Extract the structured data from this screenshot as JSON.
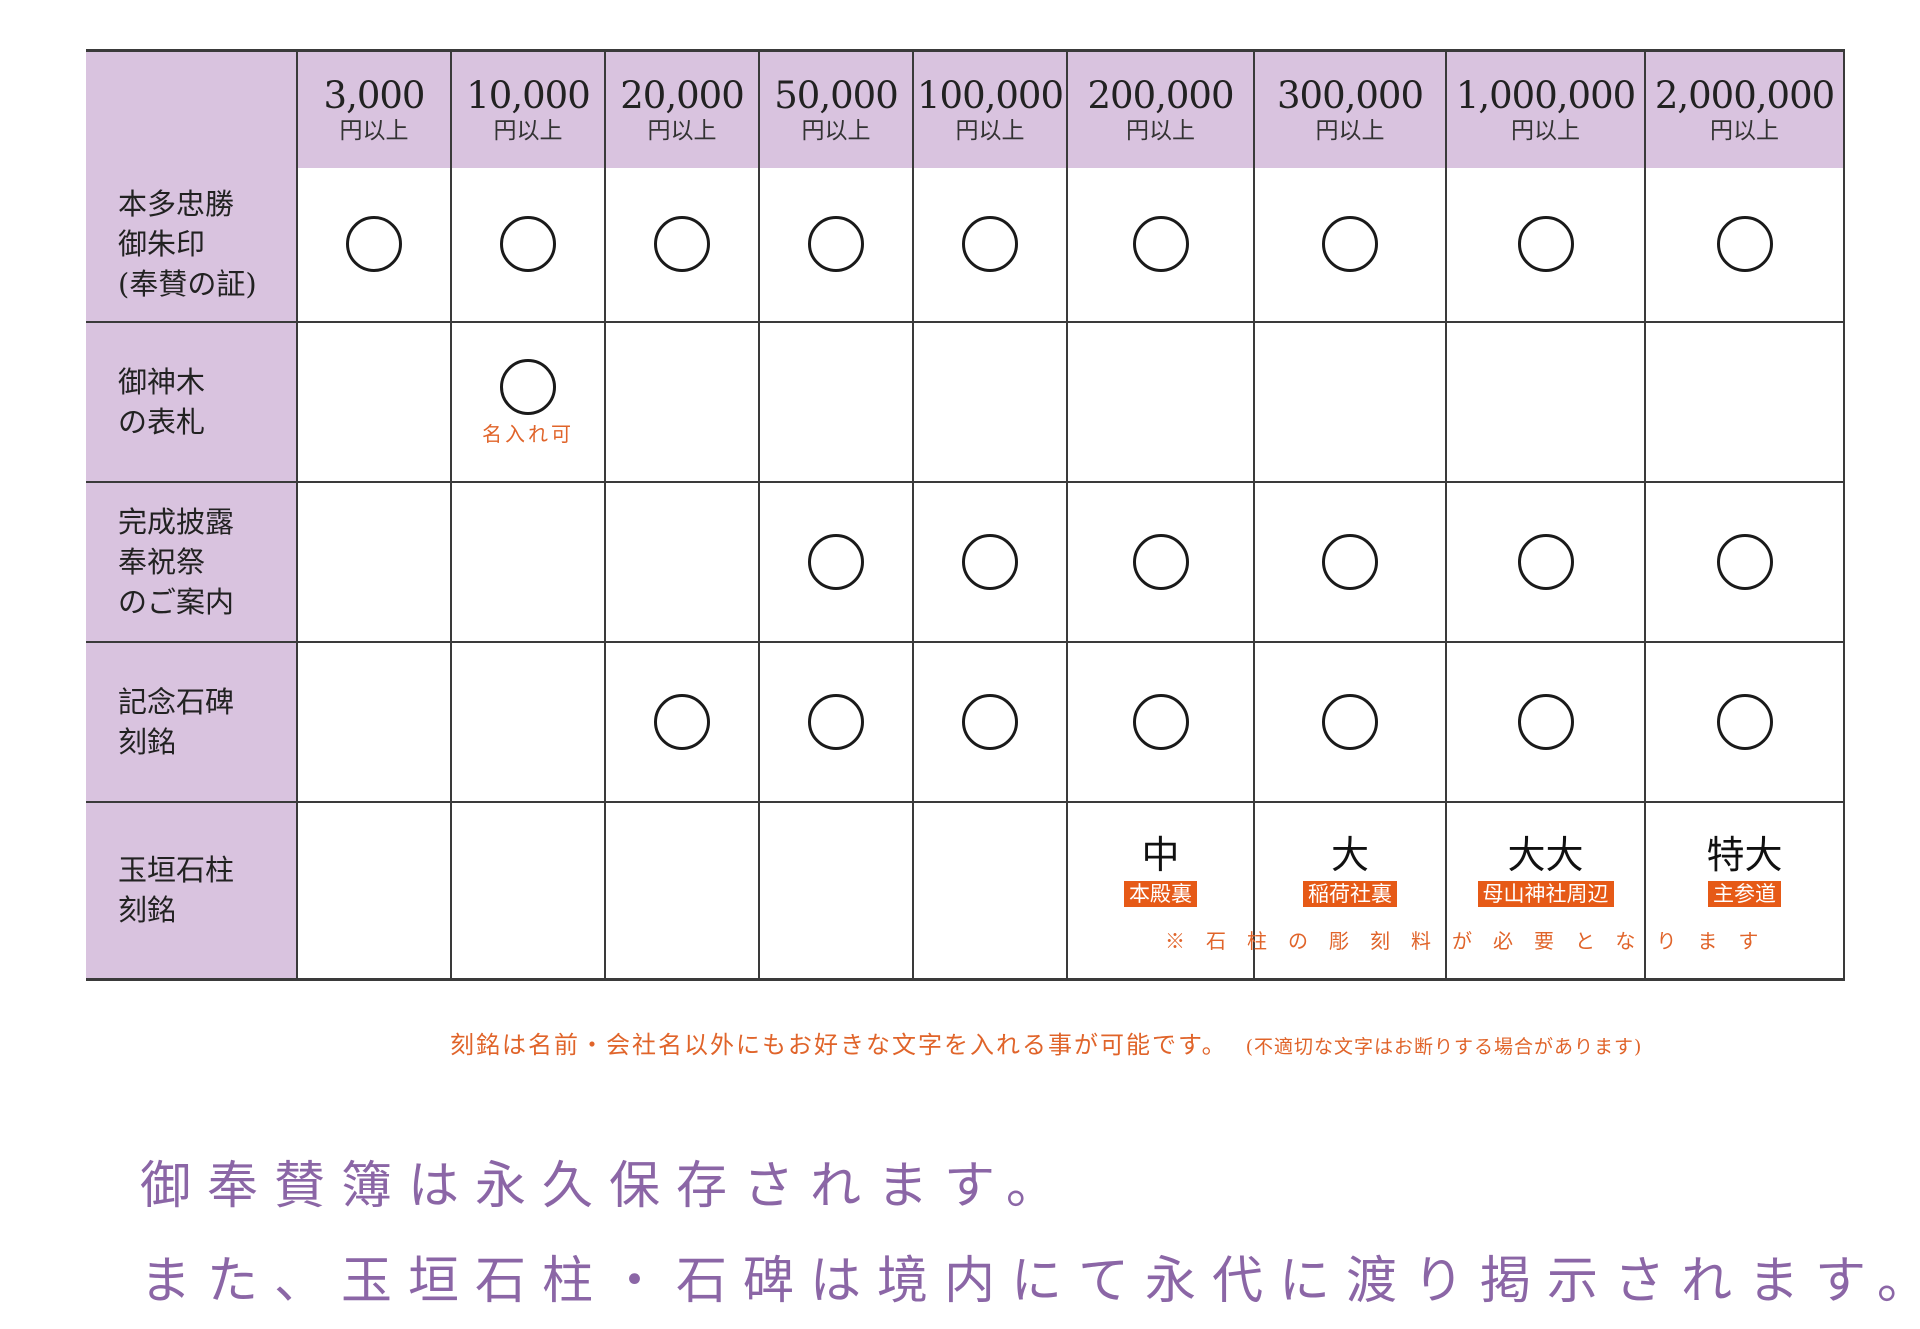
{
  "tiers": [
    {
      "amount": "3,000",
      "unit": "円以上"
    },
    {
      "amount": "10,000",
      "unit": "円以上"
    },
    {
      "amount": "20,000",
      "unit": "円以上"
    },
    {
      "amount": "50,000",
      "unit": "円以上"
    },
    {
      "amount": "100,000",
      "unit": "円以上"
    },
    {
      "amount": "200,000",
      "unit": "円以上"
    },
    {
      "amount": "300,000",
      "unit": "円以上"
    },
    {
      "amount": "1,000,000",
      "unit": "円以上"
    },
    {
      "amount": "2,000,000",
      "unit": "円以上"
    }
  ],
  "rows": [
    {
      "label_lines": [
        "本多忠勝",
        "御朱印",
        "(奉賛の証)"
      ],
      "cells": [
        {
          "mark": true
        },
        {
          "mark": true
        },
        {
          "mark": true
        },
        {
          "mark": true
        },
        {
          "mark": true
        },
        {
          "mark": true
        },
        {
          "mark": true
        },
        {
          "mark": true
        },
        {
          "mark": true
        }
      ]
    },
    {
      "label_lines": [
        "御神木",
        "の表札"
      ],
      "cells": [
        {
          "mark": false
        },
        {
          "mark": true,
          "note": "名入れ可"
        },
        {
          "mark": false
        },
        {
          "mark": false
        },
        {
          "mark": false
        },
        {
          "mark": false
        },
        {
          "mark": false
        },
        {
          "mark": false
        },
        {
          "mark": false
        }
      ]
    },
    {
      "label_lines": [
        "完成披露",
        "奉祝祭",
        "のご案内"
      ],
      "cells": [
        {
          "mark": false
        },
        {
          "mark": false
        },
        {
          "mark": false
        },
        {
          "mark": true
        },
        {
          "mark": true
        },
        {
          "mark": true
        },
        {
          "mark": true
        },
        {
          "mark": true
        },
        {
          "mark": true
        }
      ]
    },
    {
      "label_lines": [
        "記念石碑",
        "刻銘"
      ],
      "cells": [
        {
          "mark": false
        },
        {
          "mark": false
        },
        {
          "mark": true
        },
        {
          "mark": true
        },
        {
          "mark": true
        },
        {
          "mark": true
        },
        {
          "mark": true
        },
        {
          "mark": true
        },
        {
          "mark": true
        }
      ]
    },
    {
      "label_lines": [
        "玉垣石柱",
        "刻銘"
      ],
      "cells": [
        {
          "mark": false
        },
        {
          "mark": false
        },
        {
          "mark": false
        },
        {
          "mark": false
        },
        {
          "mark": false
        },
        {
          "size": "中",
          "location": "本殿裏"
        },
        {
          "size": "大",
          "location": "稲荷社裏"
        },
        {
          "size": "大大",
          "location": "母山神社周辺"
        },
        {
          "size": "特大",
          "location": "主参道"
        }
      ]
    }
  ],
  "notes": {
    "surcharge": "※石柱の彫刻料が必要となります",
    "engraving": "刻銘は名前・会社名以外にもお好きな文字を入れる事が可能です。",
    "engraving_sub": "(不適切な文字はお断りする場合があります)"
  },
  "messages": {
    "line1": "御奉賛簿は永久保存されます。",
    "line2": "また、玉垣石柱・石碑は境内にて永代に渡り掲示されます。"
  },
  "colors": {
    "header_bg": "#d9c3df",
    "note_orange": "#e0642a",
    "tag_orange": "#e65a17",
    "message_purple": "#8b66a6"
  },
  "icons": {
    "mark": "circle-mark-icon"
  }
}
